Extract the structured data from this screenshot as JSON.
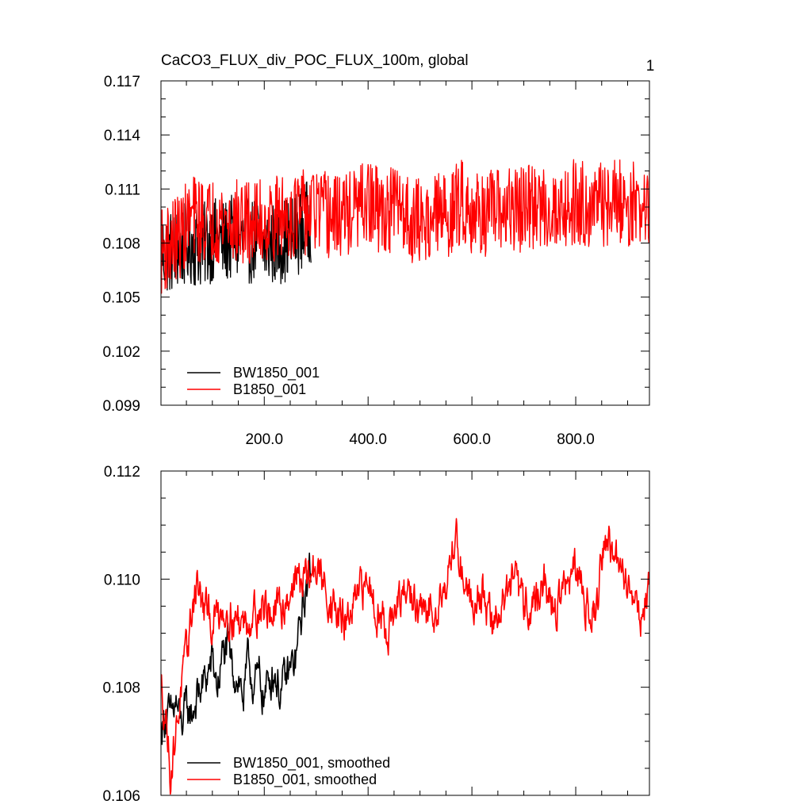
{
  "chart_data": [
    {
      "type": "line",
      "title": "CaCO3_FLUX_div_POC_FLUX_100m, global",
      "panel_label": "1",
      "xlabel": "",
      "ylabel": "",
      "xlim": [
        1,
        942
      ],
      "ylim": [
        0.099,
        0.117
      ],
      "x_ticks": [
        200,
        400,
        600,
        800
      ],
      "x_tick_labels": [
        "200.0",
        "400.0",
        "600.0",
        "800.0"
      ],
      "y_ticks": [
        0.099,
        0.102,
        0.105,
        0.108,
        0.111,
        0.114,
        0.117
      ],
      "y_tick_labels": [
        "0.099",
        "0.102",
        "0.105",
        "0.108",
        "0.111",
        "0.114",
        "0.117"
      ],
      "legend_position": "bottom-left",
      "grid": false,
      "series": [
        {
          "name": "BW1850_001",
          "color": "#000000",
          "x_range": [
            1,
            290
          ],
          "anchors_x": [
            1,
            20,
            40,
            60,
            80,
            100,
            120,
            140,
            160,
            180,
            200,
            220,
            240,
            260,
            280,
            290
          ],
          "anchors_y": [
            0.1075,
            0.1075,
            0.1078,
            0.108,
            0.1078,
            0.1082,
            0.108,
            0.1083,
            0.108,
            0.1082,
            0.1078,
            0.108,
            0.1082,
            0.1085,
            0.109,
            0.1093
          ],
          "noise_amplitude": 0.0024
        },
        {
          "name": "B1850_001",
          "color": "#ff0000",
          "x_range": [
            1,
            942
          ],
          "anchors_x": [
            1,
            20,
            40,
            60,
            80,
            100,
            130,
            160,
            200,
            240,
            280,
            300,
            330,
            360,
            400,
            430,
            460,
            480,
            500,
            540,
            560,
            580,
            600,
            630,
            660,
            700,
            740,
            760,
            800,
            840,
            880,
            920,
            942
          ],
          "anchors_y": [
            0.1075,
            0.108,
            0.1085,
            0.1095,
            0.1092,
            0.1093,
            0.1093,
            0.109,
            0.1092,
            0.1095,
            0.1097,
            0.1098,
            0.1094,
            0.1096,
            0.1102,
            0.1096,
            0.1102,
            0.1093,
            0.1092,
            0.1096,
            0.1096,
            0.1104,
            0.1098,
            0.1096,
            0.1098,
            0.1099,
            0.11,
            0.1098,
            0.1103,
            0.1101,
            0.1103,
            0.1101,
            0.1098
          ],
          "noise_amplitude": 0.0024
        }
      ]
    },
    {
      "type": "line",
      "title": "",
      "xlabel": "",
      "ylabel": "",
      "xlim": [
        1,
        942
      ],
      "ylim": [
        0.106,
        0.112
      ],
      "x_ticks": [
        200,
        400,
        600,
        800
      ],
      "y_ticks": [
        0.106,
        0.108,
        0.11,
        0.112
      ],
      "y_tick_labels": [
        "0.106",
        "0.108",
        "0.110",
        "0.112"
      ],
      "legend_position": "bottom-left",
      "grid": false,
      "series": [
        {
          "name": "BW1850_001, smoothed",
          "color": "#000000",
          "x_range": [
            1,
            290
          ],
          "anchors_x": [
            1,
            10,
            20,
            30,
            40,
            50,
            60,
            70,
            80,
            90,
            100,
            110,
            120,
            130,
            140,
            150,
            160,
            170,
            180,
            190,
            200,
            210,
            220,
            230,
            240,
            250,
            260,
            270,
            280,
            290
          ],
          "anchors_y": [
            0.1072,
            0.1075,
            0.1074,
            0.1077,
            0.1073,
            0.1076,
            0.1075,
            0.1078,
            0.108,
            0.1082,
            0.1085,
            0.108,
            0.1086,
            0.1087,
            0.1083,
            0.1082,
            0.1078,
            0.1085,
            0.108,
            0.1082,
            0.1078,
            0.1082,
            0.1083,
            0.1079,
            0.1081,
            0.1083,
            0.1085,
            0.1092,
            0.1098,
            0.1102
          ],
          "noise_amplitude": 0.0003
        },
        {
          "name": "B1850_001, smoothed",
          "color": "#ff0000",
          "x_range": [
            1,
            942
          ],
          "anchors_x": [
            1,
            10,
            20,
            30,
            40,
            50,
            60,
            70,
            80,
            100,
            120,
            140,
            160,
            180,
            200,
            220,
            240,
            260,
            280,
            300,
            320,
            340,
            360,
            380,
            400,
            420,
            440,
            460,
            480,
            500,
            520,
            540,
            560,
            570,
            580,
            600,
            620,
            640,
            660,
            680,
            700,
            720,
            740,
            760,
            780,
            800,
            820,
            840,
            850,
            860,
            880,
            900,
            910,
            920,
            930,
            942
          ],
          "anchors_y": [
            0.108,
            0.1075,
            0.1064,
            0.1072,
            0.108,
            0.1085,
            0.1094,
            0.11,
            0.1095,
            0.1092,
            0.1095,
            0.1093,
            0.1092,
            0.1094,
            0.1095,
            0.1093,
            0.1096,
            0.11,
            0.11,
            0.1102,
            0.1098,
            0.1093,
            0.1092,
            0.1096,
            0.11,
            0.1094,
            0.1091,
            0.1095,
            0.1098,
            0.1093,
            0.1094,
            0.1097,
            0.1103,
            0.1108,
            0.1102,
            0.1096,
            0.1098,
            0.1091,
            0.1096,
            0.11,
            0.1095,
            0.1096,
            0.1099,
            0.1094,
            0.1099,
            0.1101,
            0.1096,
            0.1094,
            0.1104,
            0.1108,
            0.1102,
            0.11,
            0.1097,
            0.1095,
            0.1093,
            0.11
          ],
          "noise_amplitude": 0.0003
        }
      ]
    }
  ]
}
